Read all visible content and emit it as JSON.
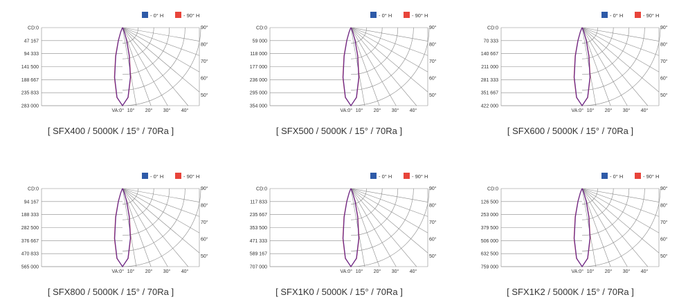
{
  "legend": {
    "series": [
      {
        "name": "- 0° H",
        "color": "#2e5aa8"
      },
      {
        "name": "- 90° H",
        "color": "#e8443a"
      }
    ]
  },
  "axis": {
    "corner_label": "CD:0",
    "va_label": "VA:0°",
    "bottom_ticks": [
      "10°",
      "20°",
      "30°",
      "40°"
    ],
    "right_ticks": [
      "90°",
      "80°",
      "70°",
      "60°",
      "50°"
    ]
  },
  "colors": {
    "curve_0H": "#2e5aa8",
    "curve_90H": "#e8443a",
    "curve_overlap": "#6a2a8a",
    "grid": "#888888"
  },
  "chart_data": [
    {
      "type": "polar",
      "title": "[ SFX400 / 5000K / 15° / 70Ra ]",
      "radial_ticks": [
        "CD:0",
        "47 167",
        "94 333",
        "141 500",
        "188 667",
        "235 833",
        "283 000"
      ],
      "rlim": [
        0,
        283000
      ],
      "beam_angle": 15,
      "series": [
        {
          "name": "- 0° H",
          "peak_cd": 283000
        },
        {
          "name": "- 90° H",
          "peak_cd": 283000
        }
      ]
    },
    {
      "type": "polar",
      "title": "[ SFX500 / 5000K / 15° / 70Ra ]",
      "radial_ticks": [
        "CD:0",
        "59 000",
        "118 000",
        "177 000",
        "236 000",
        "295 000",
        "354 000"
      ],
      "rlim": [
        0,
        354000
      ],
      "beam_angle": 15,
      "series": [
        {
          "name": "- 0° H",
          "peak_cd": 354000
        },
        {
          "name": "- 90° H",
          "peak_cd": 354000
        }
      ]
    },
    {
      "type": "polar",
      "title": "[ SFX600 / 5000K / 15° / 70Ra ]",
      "radial_ticks": [
        "CD:0",
        "70 333",
        "140 667",
        "211 000",
        "281 333",
        "351 667",
        "422 000"
      ],
      "rlim": [
        0,
        422000
      ],
      "beam_angle": 15,
      "series": [
        {
          "name": "- 0° H",
          "peak_cd": 422000
        },
        {
          "name": "- 90° H",
          "peak_cd": 422000
        }
      ]
    },
    {
      "type": "polar",
      "title": "[ SFX800 / 5000K / 15° / 70Ra ]",
      "radial_ticks": [
        "CD:0",
        "94 167",
        "188 333",
        "282 500",
        "376 667",
        "470 833",
        "565 000"
      ],
      "rlim": [
        0,
        565000
      ],
      "beam_angle": 15,
      "series": [
        {
          "name": "- 0° H",
          "peak_cd": 565000
        },
        {
          "name": "- 90° H",
          "peak_cd": 565000
        }
      ]
    },
    {
      "type": "polar",
      "title": "[ SFX1K0 / 5000K / 15° / 70Ra ]",
      "radial_ticks": [
        "CD:0",
        "117 833",
        "235 667",
        "353 500",
        "471 333",
        "589 167",
        "707 000"
      ],
      "rlim": [
        0,
        707000
      ],
      "beam_angle": 15,
      "series": [
        {
          "name": "- 0° H",
          "peak_cd": 707000
        },
        {
          "name": "- 90° H",
          "peak_cd": 707000
        }
      ]
    },
    {
      "type": "polar",
      "title": "[ SFX1K2 / 5000K / 15° / 70Ra ]",
      "radial_ticks": [
        "CD:0",
        "126 500",
        "253 000",
        "379 500",
        "506 000",
        "632 500",
        "759 000"
      ],
      "rlim": [
        0,
        759000
      ],
      "beam_angle": 15,
      "series": [
        {
          "name": "- 0° H",
          "peak_cd": 759000
        },
        {
          "name": "- 90° H",
          "peak_cd": 759000
        }
      ]
    }
  ]
}
